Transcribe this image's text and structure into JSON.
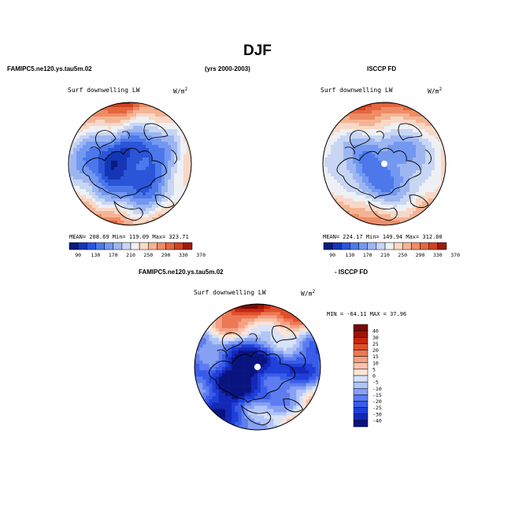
{
  "title": "DJF",
  "header_left": "FAMIPC5.ne120.ys.tau5m.02",
  "header_mid": "(yrs 2000-2003)",
  "header_right": "ISCCP FD",
  "diff_header_left": "FAMIPC5.ne120.ys.tau5m.02",
  "diff_header_right": "- ISCCP FD",
  "colors": {
    "seq_palette": [
      "#0a1a80",
      "#1536b4",
      "#2a55d8",
      "#4c78ec",
      "#7398f0",
      "#9db6f2",
      "#c8d6f4",
      "#eef0f4",
      "#f8d8c6",
      "#f4b494",
      "#ee8c66",
      "#e4663e",
      "#cc4222",
      "#9c1a0c"
    ],
    "diff_palette": [
      "#0a1480",
      "#1428b8",
      "#1e40d8",
      "#3a5ce8",
      "#5c7cf0",
      "#86a0f4",
      "#b0c4f6",
      "#d8e2f8",
      "#fbe4d8",
      "#f8c4ae",
      "#f4a084",
      "#ee7854",
      "#e0502c",
      "#c42810",
      "#9c1408",
      "#7a0a04"
    ]
  },
  "chart_data": [
    {
      "type": "heatmap",
      "projection": "north-polar-stereographic",
      "panel": "model",
      "left_label": "Surf downwelling LW",
      "units_label": "W/m",
      "units_exp": "2",
      "stats_text": "MEAN= 208.69  Min= 119.09  Max= 323.71",
      "mean": 208.69,
      "min": 119.09,
      "max": 323.71,
      "colorbar_ticks": [
        "90",
        "130",
        "170",
        "210",
        "250",
        "290",
        "330",
        "370"
      ],
      "pattern": "Cold (<170) over Arctic Ocean, Greenland and Canadian Arctic; warm (>290) over North Atlantic and North Pacific margins."
    },
    {
      "type": "heatmap",
      "projection": "north-polar-stereographic",
      "panel": "observation",
      "left_label": "Surf downwelling LW",
      "units_label": "W/m",
      "units_exp": "2",
      "stats_text": "MEAN= 224.17  Min= 149.94  Max= 312.00",
      "mean": 224.17,
      "min": 149.94,
      "max": 312.0,
      "colorbar_ticks": [
        "90",
        "130",
        "170",
        "210",
        "250",
        "290",
        "330",
        "370"
      ],
      "pattern": "Moderate values (170-210) over Arctic; missing data at pole; warm over subpolar oceans."
    },
    {
      "type": "heatmap",
      "projection": "north-polar-stereographic",
      "panel": "difference",
      "left_label": "Surf downwelling LW",
      "units_label": "W/m",
      "units_exp": "2",
      "stats_text": "MIN = -64.11 MAX =  37.96",
      "min": -64.11,
      "max": 37.96,
      "colorbar_ticks": [
        "40",
        "30",
        "25",
        "20",
        "15",
        "10",
        "5",
        "0",
        "-5",
        "-10",
        "-15",
        "-20",
        "-25",
        "-30",
        "-40"
      ],
      "pattern": "Strong negative (-20 to -40) over Arctic and Eurasia; positive (10-40) over North Pacific and North Atlantic."
    }
  ]
}
